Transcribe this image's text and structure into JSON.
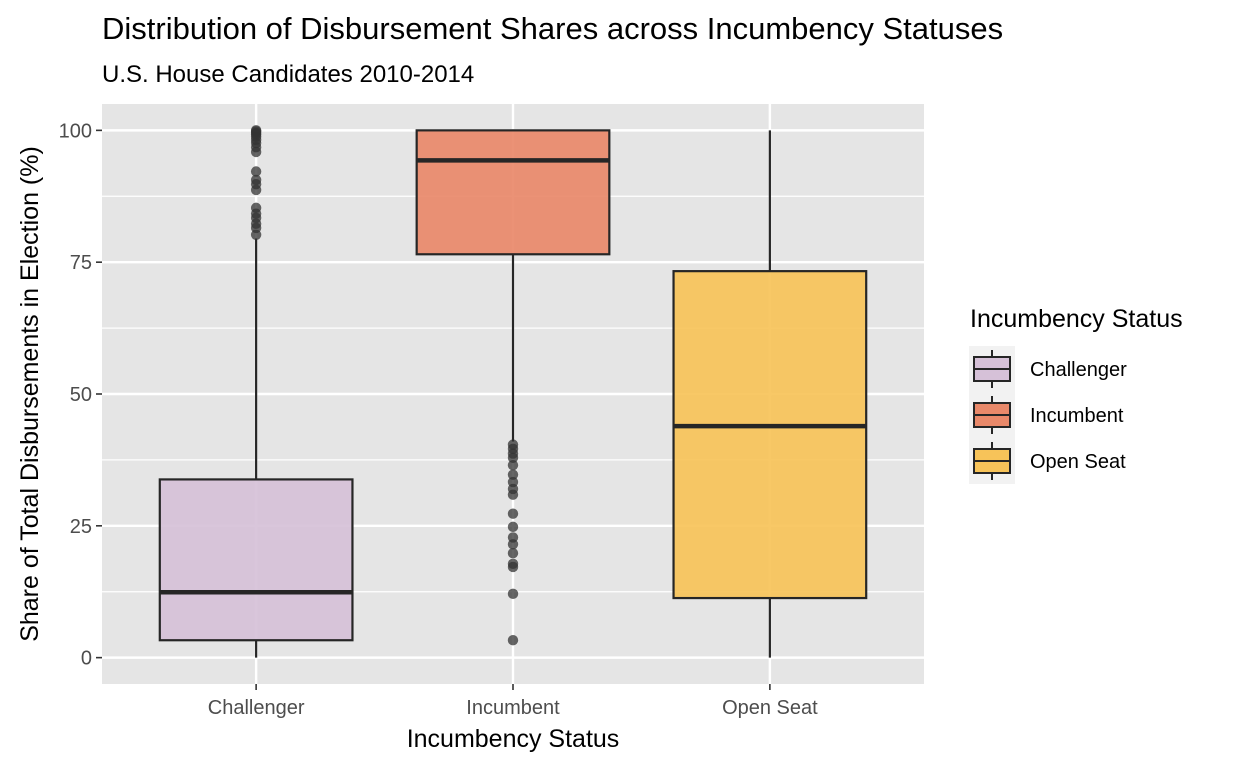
{
  "chart_data": {
    "type": "box",
    "title": "Distribution of Disbursement Shares across Incumbency Statuses",
    "subtitle": "U.S. House Candidates 2010-2014",
    "xlabel": "Incumbency Status",
    "ylabel": "Share of Total Disbursements in Election (%)",
    "categories": [
      "Challenger",
      "Incumbent",
      "Open Seat"
    ],
    "ylim": [
      -5,
      105
    ],
    "yticks": [
      0,
      25,
      50,
      75,
      100
    ],
    "ytick_labels": [
      "0",
      "25",
      "50",
      "75",
      "100"
    ],
    "grid": true,
    "legend": {
      "title": "Incumbency Status",
      "position": "right",
      "items": [
        "Challenger",
        "Incumbent",
        "Open Seat"
      ]
    },
    "colors": {
      "Challenger": "#d6c1d8",
      "Incumbent": "#e9896a",
      "Open Seat": "#f7c359",
      "panel_background": "#e5e5e5",
      "grid": "#ffffff",
      "box_outline": "#262626",
      "outlier": "#333333"
    },
    "series": [
      {
        "name": "Challenger",
        "whisker_low": 0,
        "q1": 3.3,
        "median": 12.4,
        "q3": 33.8,
        "whisker_high": 79.5,
        "outliers": [
          80.2,
          81.5,
          82.3,
          83.4,
          84.2,
          85.3,
          88.7,
          89.8,
          90.6,
          92.2,
          95.9,
          96.8,
          97.6,
          98.2,
          98.8,
          99.2,
          99.5,
          99.8,
          100
        ]
      },
      {
        "name": "Incumbent",
        "whisker_low": 41,
        "q1": 76.5,
        "median": 94.3,
        "q3": 100,
        "whisker_high": 100,
        "outliers": [
          3.3,
          12.1,
          17.2,
          17.8,
          19.8,
          21.5,
          22.8,
          24.8,
          27.3,
          30.9,
          32.0,
          33.3,
          34.7,
          36.5,
          37.9,
          38.7,
          39.6,
          40.4
        ]
      },
      {
        "name": "Open Seat",
        "whisker_low": 0,
        "q1": 11.3,
        "median": 43.9,
        "q3": 73.3,
        "whisker_high": 100,
        "outliers": []
      }
    ]
  }
}
